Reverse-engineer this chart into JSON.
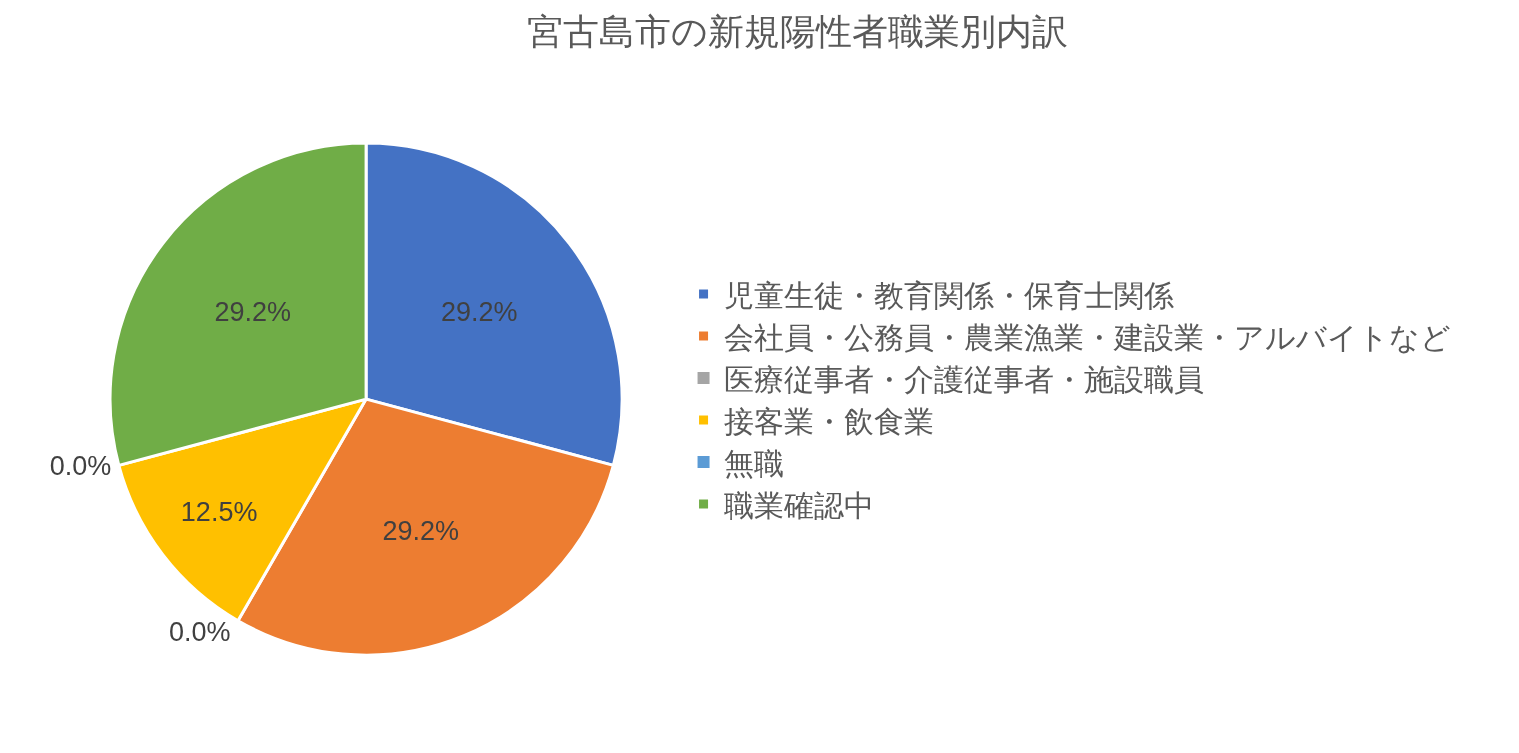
{
  "chart_data": {
    "type": "pie",
    "title": "宮古島市の新規陽性者職業別内訳",
    "categories": [
      "児童生徒・教育関係・保育士関係",
      "会社員・公務員・農業漁業・建設業・アルバイトなど",
      "医療従事者・介護従事者・施設職員",
      "接客業・飲食業",
      "無職",
      "職業確認中"
    ],
    "values": [
      29.2,
      29.2,
      0.0,
      12.5,
      0.0,
      29.2
    ],
    "value_labels": [
      "29.2%",
      "29.2%",
      "0.0%",
      "12.5%",
      "0.0%",
      "29.2%"
    ],
    "colors": [
      "#4472c4",
      "#ed7d31",
      "#a5a5a5",
      "#ffc000",
      "#5b9bd5",
      "#70ad47"
    ],
    "legend": "right"
  }
}
